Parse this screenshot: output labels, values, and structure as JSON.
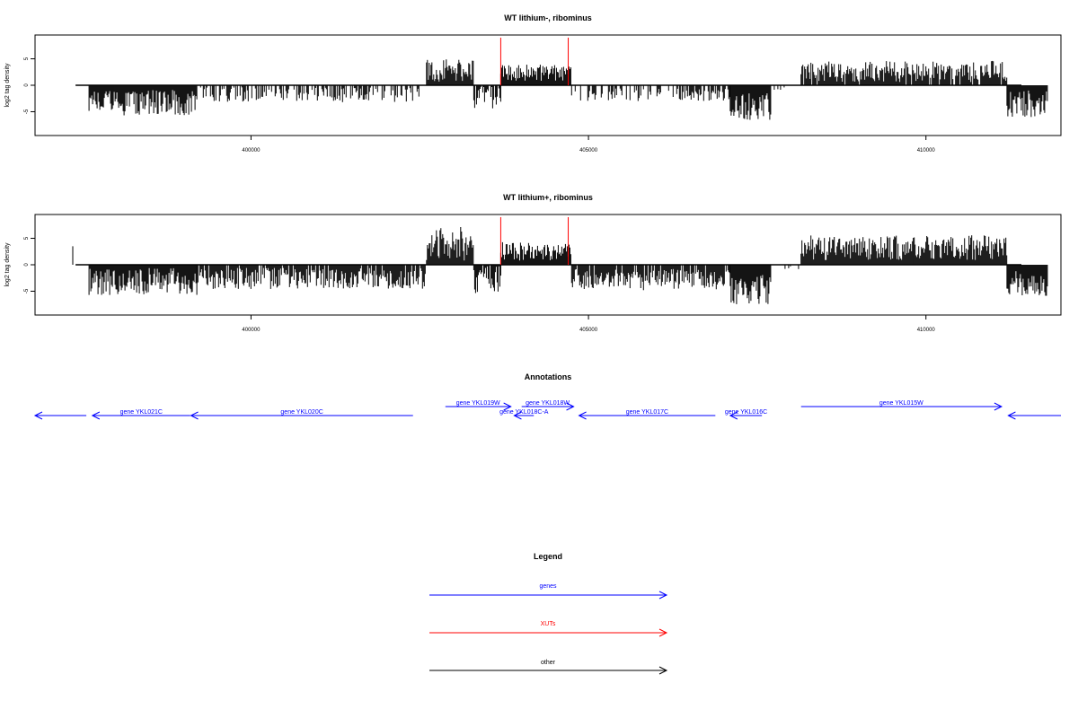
{
  "colors": {
    "genes": "#0000ff",
    "xuts": "#ff0000",
    "other": "#000000",
    "bars": "#000000"
  },
  "genome_range": [
    396800,
    412000
  ],
  "panels": [
    {
      "title": "WT lithium-, ribominus",
      "ylabel": "log2 tag density",
      "yticks": [
        "-5",
        "0",
        "5"
      ],
      "xticks": [
        "400000",
        "405000",
        "410000"
      ],
      "ylim": [
        -9.5,
        9.5
      ]
    },
    {
      "title": "WT lithium+, ribominus",
      "ylabel": "log2 tag density",
      "yticks": [
        "-5",
        "0",
        "5"
      ],
      "xticks": [
        "400000",
        "405000",
        "410000"
      ],
      "ylim": [
        -9.5,
        9.5
      ]
    }
  ],
  "annotations": {
    "title": "Annotations",
    "genes": [
      {
        "label": "",
        "start": 396800,
        "end": 397560,
        "strand": "-",
        "row": 1
      },
      {
        "label": "gene YKL021C",
        "start": 397650,
        "end": 399100,
        "strand": "-",
        "row": 1
      },
      {
        "label": "gene YKL020C",
        "start": 399110,
        "end": 402400,
        "strand": "-",
        "row": 1
      },
      {
        "label": "gene YKL019W",
        "start": 402880,
        "end": 403850,
        "strand": "+",
        "row": 0
      },
      {
        "label": "gene YKL018C-A",
        "start": 403900,
        "end": 404190,
        "strand": "-",
        "row": 1
      },
      {
        "label": "gene YKL018W",
        "start": 404010,
        "end": 404780,
        "strand": "+",
        "row": 0
      },
      {
        "label": "gene YKL017C",
        "start": 404860,
        "end": 406880,
        "strand": "-",
        "row": 1
      },
      {
        "label": "gene YKL016C",
        "start": 407100,
        "end": 407570,
        "strand": "-",
        "row": 1
      },
      {
        "label": "gene YKL015W",
        "start": 408150,
        "end": 411120,
        "strand": "+",
        "row": 0
      },
      {
        "label": "",
        "start": 411220,
        "end": 412000,
        "strand": "-",
        "row": 1
      }
    ]
  },
  "legend": {
    "title": "Legend",
    "items": [
      {
        "label": "genes",
        "color": "#0000ff"
      },
      {
        "label": "XUTs",
        "color": "#ff0000"
      },
      {
        "label": "other",
        "color": "#000000"
      }
    ]
  },
  "chart_data": [
    {
      "type": "bar",
      "title": "WT lithium-, ribominus",
      "xlabel": "",
      "ylabel": "log2 tag density",
      "xlim": [
        396800,
        412000
      ],
      "ylim": [
        -9.5,
        9.5
      ],
      "xticks": [
        400000,
        405000,
        410000
      ],
      "yticks": [
        -5,
        0,
        5
      ],
      "baseline": {
        "x": [
          397400,
          412400
        ],
        "y": 0
      },
      "xut_marks": [
        {
          "x": 403700,
          "y": 9
        },
        {
          "x": 404700,
          "y": 9
        }
      ],
      "regions": [
        {
          "x": [
            397600,
            399200
          ],
          "y_mean": -3.3,
          "y_amp": 2.4,
          "density": 1.0
        },
        {
          "x": [
            399200,
            402600
          ],
          "y_mean": -1.8,
          "y_amp": 1.4,
          "density": 0.55
        },
        {
          "x": [
            402600,
            403300
          ],
          "y_mean": 2.8,
          "y_amp": 2.2,
          "density": 1.0
        },
        {
          "x": [
            403300,
            403700
          ],
          "y_mean": -2.2,
          "y_amp": 2.4,
          "density": 0.8
        },
        {
          "x": [
            403700,
            404750
          ],
          "y_mean": 2.4,
          "y_amp": 1.6,
          "density": 1.0
        },
        {
          "x": [
            404750,
            407100
          ],
          "y_mean": -1.8,
          "y_amp": 1.2,
          "density": 0.5
        },
        {
          "x": [
            407100,
            407700
          ],
          "y_mean": -4.0,
          "y_amp": 2.6,
          "density": 1.0
        },
        {
          "x": [
            407700,
            408150
          ],
          "y_mean": -0.5,
          "y_amp": 0.4,
          "density": 0.1
        },
        {
          "x": [
            408150,
            411200
          ],
          "y_mean": 2.6,
          "y_amp": 2.0,
          "density": 0.9
        },
        {
          "x": [
            411200,
            411800
          ],
          "y_mean": -3.5,
          "y_amp": 2.5,
          "density": 1.0
        }
      ]
    },
    {
      "type": "bar",
      "title": "WT lithium+, ribominus",
      "xlabel": "",
      "ylabel": "log2 tag density",
      "xlim": [
        396800,
        412000
      ],
      "ylim": [
        -9.5,
        9.5
      ],
      "xticks": [
        400000,
        405000,
        410000
      ],
      "yticks": [
        -5,
        0,
        5
      ],
      "baseline": {
        "x": [
          397400,
          412400
        ],
        "y": 0
      },
      "xut_marks": [
        {
          "x": 403700,
          "y": 9
        },
        {
          "x": 404700,
          "y": 9
        }
      ],
      "regions": [
        {
          "x": [
            397600,
            399200
          ],
          "y_mean": -3.2,
          "y_amp": 2.6,
          "density": 1.0
        },
        {
          "x": [
            399200,
            402600
          ],
          "y_mean": -2.6,
          "y_amp": 2.0,
          "density": 0.85
        },
        {
          "x": [
            402600,
            403300
          ],
          "y_mean": 4.0,
          "y_amp": 3.2,
          "density": 1.0
        },
        {
          "x": [
            403300,
            403700
          ],
          "y_mean": -2.8,
          "y_amp": 2.6,
          "density": 0.9
        },
        {
          "x": [
            403700,
            404750
          ],
          "y_mean": 2.6,
          "y_amp": 1.8,
          "density": 1.0
        },
        {
          "x": [
            404750,
            407100
          ],
          "y_mean": -2.8,
          "y_amp": 2.0,
          "density": 0.9
        },
        {
          "x": [
            407100,
            407700
          ],
          "y_mean": -4.8,
          "y_amp": 3.0,
          "density": 1.0
        },
        {
          "x": [
            407700,
            408150
          ],
          "y_mean": -0.5,
          "y_amp": 0.4,
          "density": 0.15
        },
        {
          "x": [
            408150,
            411200
          ],
          "y_mean": 3.2,
          "y_amp": 2.4,
          "density": 1.0
        },
        {
          "x": [
            411200,
            411800
          ],
          "y_mean": -3.6,
          "y_amp": 2.4,
          "density": 1.0
        }
      ]
    }
  ]
}
